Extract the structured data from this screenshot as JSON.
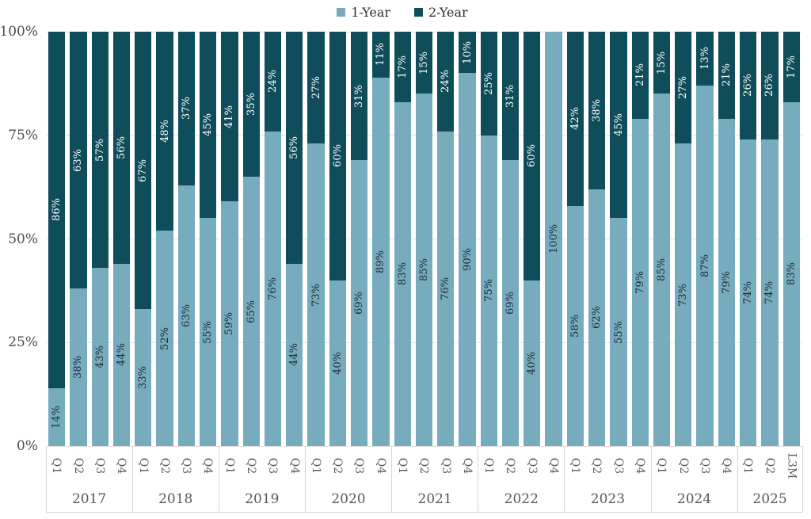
{
  "legend": {
    "position": "top",
    "items": [
      {
        "label": "1-Year",
        "color": "#76acbe"
      },
      {
        "label": "2-Year",
        "color": "#0e4d59"
      }
    ]
  },
  "y_axis": {
    "tick_labels": [
      "100%",
      "75%",
      "50%",
      "25%",
      "0%"
    ],
    "tick_values": [
      100,
      75,
      50,
      25,
      0
    ]
  },
  "colors": {
    "one_year_bar": "#76acbe",
    "two_year_bar": "#0e4d59",
    "label_on_dark": "#ffffff",
    "label_on_light": "#1e2b31",
    "gridline": "#e3e3e3",
    "axis_line": "#d6d6d6",
    "axis_text": "#595959"
  },
  "chart_data": {
    "type": "bar",
    "stacked": true,
    "orientation": "vertical",
    "unit": "%",
    "ylim": [
      0,
      100
    ],
    "grid": "horizontal",
    "legend_position": "top",
    "series_names": [
      "1-Year",
      "2-Year"
    ],
    "groups": [
      {
        "year": "2017",
        "bars": [
          {
            "label": "Q1",
            "one_year": 14,
            "two_year": 86
          },
          {
            "label": "Q2",
            "one_year": 38,
            "two_year": 63
          },
          {
            "label": "Q3",
            "one_year": 43,
            "two_year": 57
          },
          {
            "label": "Q4",
            "one_year": 44,
            "two_year": 56
          }
        ]
      },
      {
        "year": "2018",
        "bars": [
          {
            "label": "Q1",
            "one_year": 33,
            "two_year": 67
          },
          {
            "label": "Q2",
            "one_year": 52,
            "two_year": 48
          },
          {
            "label": "Q3",
            "one_year": 63,
            "two_year": 37
          },
          {
            "label": "Q4",
            "one_year": 55,
            "two_year": 45
          }
        ]
      },
      {
        "year": "2019",
        "bars": [
          {
            "label": "Q1",
            "one_year": 59,
            "two_year": 41
          },
          {
            "label": "Q2",
            "one_year": 65,
            "two_year": 35
          },
          {
            "label": "Q3",
            "one_year": 76,
            "two_year": 24
          },
          {
            "label": "Q4",
            "one_year": 44,
            "two_year": 56
          }
        ]
      },
      {
        "year": "2020",
        "bars": [
          {
            "label": "Q1",
            "one_year": 73,
            "two_year": 27
          },
          {
            "label": "Q2",
            "one_year": 40,
            "two_year": 60
          },
          {
            "label": "Q3",
            "one_year": 69,
            "two_year": 31
          },
          {
            "label": "Q4",
            "one_year": 89,
            "two_year": 11
          }
        ]
      },
      {
        "year": "2021",
        "bars": [
          {
            "label": "Q1",
            "one_year": 83,
            "two_year": 17
          },
          {
            "label": "Q2",
            "one_year": 85,
            "two_year": 15
          },
          {
            "label": "Q3",
            "one_year": 76,
            "two_year": 24
          },
          {
            "label": "Q4",
            "one_year": 90,
            "two_year": 10
          }
        ]
      },
      {
        "year": "2022",
        "bars": [
          {
            "label": "Q1",
            "one_year": 75,
            "two_year": 25
          },
          {
            "label": "Q2",
            "one_year": 69,
            "two_year": 31
          },
          {
            "label": "Q3",
            "one_year": 40,
            "two_year": 60
          },
          {
            "label": "Q4",
            "one_year": 100,
            "two_year": null
          }
        ]
      },
      {
        "year": "2023",
        "bars": [
          {
            "label": "Q1",
            "one_year": 58,
            "two_year": 42
          },
          {
            "label": "Q2",
            "one_year": 62,
            "two_year": 38
          },
          {
            "label": "Q3",
            "one_year": 55,
            "two_year": 45
          },
          {
            "label": "Q4",
            "one_year": 79,
            "two_year": 21
          }
        ]
      },
      {
        "year": "2024",
        "bars": [
          {
            "label": "Q1",
            "one_year": 85,
            "two_year": 15
          },
          {
            "label": "Q2",
            "one_year": 73,
            "two_year": 27
          },
          {
            "label": "Q3",
            "one_year": 87,
            "two_year": 13
          },
          {
            "label": "Q4",
            "one_year": 79,
            "two_year": 21
          }
        ]
      },
      {
        "year": "2025",
        "bars": [
          {
            "label": "Q1",
            "one_year": 74,
            "two_year": 26
          },
          {
            "label": "Q2",
            "one_year": 74,
            "two_year": 26
          },
          {
            "label": "L3M",
            "one_year": 83,
            "two_year": 17
          }
        ]
      }
    ]
  }
}
